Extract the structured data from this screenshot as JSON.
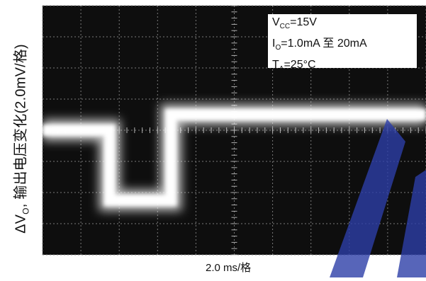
{
  "chart_data": {
    "type": "line",
    "title": "",
    "ylabel": "ΔV_O, 输出电压变化(2.0mV/格)",
    "ylabel_parts": {
      "delta": "ΔV",
      "sub": "O",
      "rest": ", 输出电压变化(2.0mV/格)"
    },
    "xlabel": "2.0 ms/格",
    "grid": true,
    "divisions": {
      "x": 10,
      "y": 8
    },
    "x_unit": "ms",
    "y_unit": "mV",
    "x_per_div": 2.0,
    "y_per_div": 2.0,
    "xlim": [
      -10,
      10
    ],
    "ylim": [
      -8,
      8
    ],
    "annotations": [
      {
        "prefix": "V",
        "sub": "CC",
        "suffix": "=15V"
      },
      {
        "prefix": "I",
        "sub": "O",
        "suffix": "=1.0mA 至 20mA"
      },
      {
        "prefix": "T",
        "sub": "A",
        "suffix": "=25°C"
      }
    ],
    "series": [
      {
        "x": [
          -10,
          -6.5,
          -6.5,
          -3.3,
          -3.3,
          10
        ],
        "y": [
          0,
          0,
          -4.5,
          -4.5,
          1.0,
          1.0
        ]
      }
    ]
  },
  "colors": {
    "screen": "#0e0e0e",
    "grid": "#7a7a7a",
    "trace": "#ffffff",
    "watermark": "#2d3ea8"
  }
}
